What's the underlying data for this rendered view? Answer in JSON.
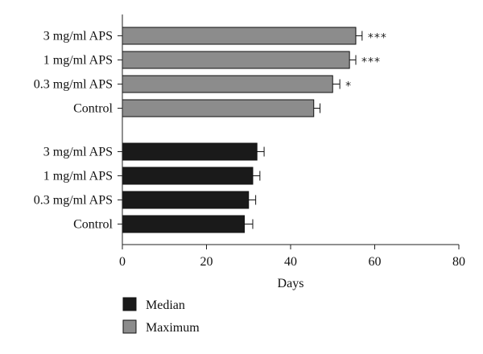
{
  "chart_data": {
    "type": "bar",
    "orientation": "horizontal",
    "xlabel": "Days",
    "xlim": [
      0,
      80
    ],
    "xticks": [
      0,
      20,
      40,
      60,
      80
    ],
    "grid": false,
    "legend_position": "bottom-left",
    "series": [
      {
        "name": "Maximum",
        "color": "#8c8c8c",
        "categories": [
          "3 mg/ml APS",
          "1 mg/ml APS",
          "0.3 mg/ml APS",
          "Control"
        ],
        "values": [
          55.5,
          54,
          50,
          45.5
        ],
        "errors": [
          1.5,
          1.5,
          1.7,
          1.5
        ],
        "significance": [
          "***",
          "***",
          "*",
          ""
        ]
      },
      {
        "name": "Median",
        "color": "#1a1a1a",
        "categories": [
          "3 mg/ml APS",
          "1 mg/ml APS",
          "0.3 mg/ml APS",
          "Control"
        ],
        "values": [
          32,
          31,
          30,
          29
        ],
        "errors": [
          1.7,
          1.7,
          1.7,
          2.0
        ],
        "significance": [
          "",
          "",
          "",
          ""
        ]
      }
    ],
    "legend_order": [
      "Median",
      "Maximum"
    ]
  }
}
